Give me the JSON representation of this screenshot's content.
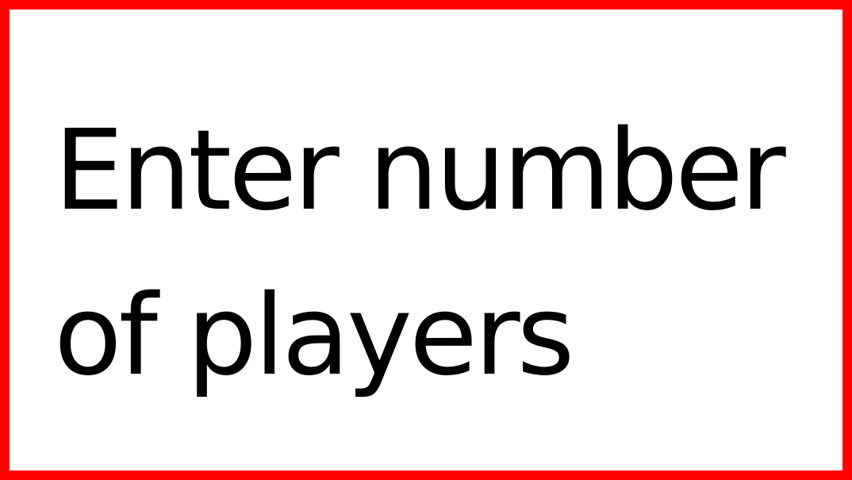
{
  "prompt": {
    "line1": "Enter number",
    "line2": "of players"
  },
  "colors": {
    "border": "#ff0000",
    "background": "#ffffff",
    "text": "#000000"
  }
}
